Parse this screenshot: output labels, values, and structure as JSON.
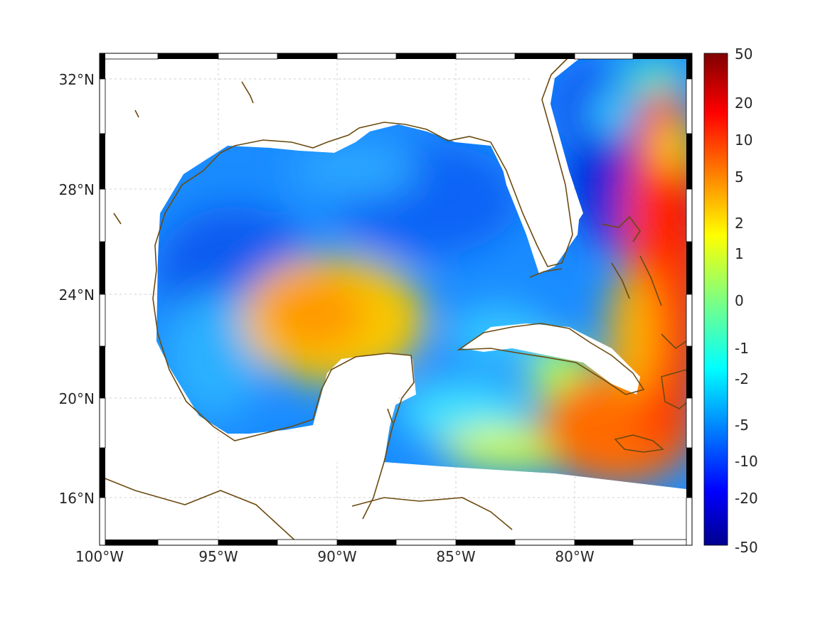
{
  "map": {
    "lat_labels": [
      "32°N",
      "28°N",
      "24°N",
      "20°N",
      "16°N"
    ],
    "lon_labels": [
      "100°W",
      "95°W",
      "90°W",
      "85°W",
      "80°W"
    ],
    "colorbar_labels": [
      "50",
      "20",
      "10",
      "5",
      "2",
      "1",
      "0",
      "-1",
      "-2",
      "-5",
      "-10",
      "-20",
      "-50"
    ],
    "coastline_color": "#6b4a10",
    "colormap": "jet"
  }
}
